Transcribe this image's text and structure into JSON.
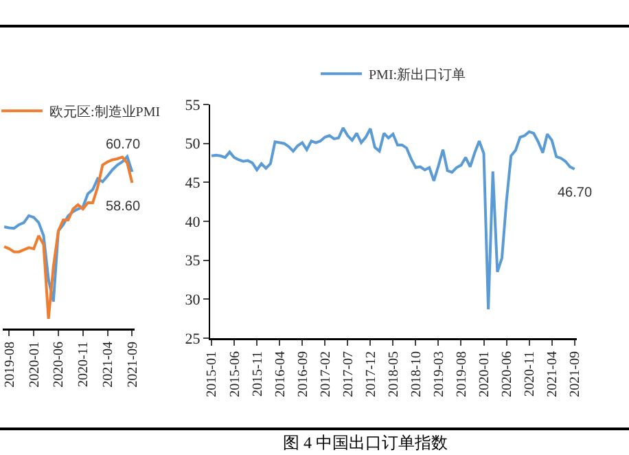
{
  "chart_data": [
    {
      "type": "line",
      "legend": "top right",
      "categories": [
        null,
        "2019-08",
        null,
        null,
        null,
        null,
        "2020-01",
        null,
        null,
        null,
        null,
        "2020-06",
        null,
        null,
        null,
        null,
        "2020-11",
        null,
        null,
        null,
        null,
        "2021-04",
        null,
        null,
        null,
        null,
        "2021-09"
      ],
      "series": [
        {
          "color": "#5b9bd5",
          "values": [
            50.2,
            50.0,
            49.9,
            50.6,
            51.0,
            52.3,
            52.0,
            51.0,
            48.5,
            40.1,
            35.9,
            49.4,
            50.6,
            52.3,
            53.1,
            53.6,
            54.0,
            56.5,
            57.3,
            59.4,
            58.8,
            59.9,
            61.1,
            62.0,
            62.6,
            63.6,
            60.7
          ],
          "value_labels": [
            null,
            null,
            null,
            null,
            null,
            null,
            null,
            null,
            null,
            null,
            null,
            null,
            null,
            null,
            null,
            null,
            null,
            null,
            null,
            null,
            null,
            null,
            null,
            null,
            null,
            null,
            "60.70"
          ]
        },
        {
          "name": "欧元区:制造业PMI",
          "color": "#ed7d31",
          "values": [
            46.4,
            46.0,
            45.4,
            45.4,
            45.8,
            46.2,
            46.0,
            48.5,
            46.8,
            32.6,
            42.6,
            49.4,
            51.5,
            51.5,
            53.6,
            54.4,
            53.6,
            54.8,
            54.8,
            57.8,
            62.0,
            62.6,
            63.0,
            63.2,
            63.5,
            62.4,
            58.6
          ],
          "value_labels": [
            null,
            null,
            null,
            null,
            null,
            null,
            null,
            null,
            null,
            null,
            null,
            null,
            null,
            null,
            null,
            null,
            null,
            null,
            null,
            null,
            null,
            null,
            null,
            null,
            null,
            null,
            "58.60"
          ]
        }
      ]
    },
    {
      "type": "line",
      "title": "图 4  中国出口订单指数",
      "legend": "top",
      "categories": [
        "2015-01",
        null,
        null,
        null,
        null,
        "2015-06",
        null,
        null,
        null,
        null,
        "2015-11",
        null,
        null,
        null,
        null,
        "2016-04",
        null,
        null,
        null,
        null,
        "2016-09",
        null,
        null,
        null,
        null,
        "2017-02",
        null,
        null,
        null,
        null,
        "2017-07",
        null,
        null,
        null,
        null,
        "2017-12",
        null,
        null,
        null,
        null,
        "2018-05",
        null,
        null,
        null,
        null,
        "2018-10",
        null,
        null,
        null,
        null,
        "2019-03",
        null,
        null,
        null,
        null,
        "2019-08",
        null,
        null,
        null,
        null,
        "2020-01",
        null,
        null,
        null,
        null,
        "2020-06",
        null,
        null,
        null,
        null,
        "2020-11",
        null,
        null,
        null,
        null,
        "2021-04",
        null,
        null,
        null,
        null,
        "2021-09"
      ],
      "ylim": [
        25,
        55
      ],
      "yticks": [
        25,
        30,
        35,
        40,
        45,
        50,
        55
      ],
      "series": [
        {
          "name": "PMI:新出口订单",
          "color": "#5b9bd5",
          "values": [
            48.4,
            48.5,
            48.4,
            48.2,
            48.9,
            48.2,
            47.9,
            47.7,
            47.8,
            47.5,
            46.6,
            47.4,
            46.8,
            47.4,
            50.2,
            50.1,
            50.0,
            49.6,
            49.0,
            49.7,
            50.1,
            49.2,
            50.3,
            50.1,
            50.3,
            50.8,
            51.0,
            50.6,
            50.7,
            52.0,
            51.0,
            50.4,
            51.3,
            50.1,
            50.8,
            51.9,
            49.5,
            49.0,
            51.3,
            50.7,
            51.2,
            49.8,
            49.8,
            49.4,
            48.0,
            46.9,
            47.0,
            46.6,
            46.9,
            45.2,
            47.1,
            49.2,
            46.5,
            46.3,
            46.9,
            47.2,
            48.2,
            47.0,
            48.8,
            50.3,
            48.7,
            28.7,
            46.4,
            33.5,
            35.3,
            42.6,
            48.4,
            49.1,
            50.8,
            51.0,
            51.5,
            51.3,
            50.2,
            48.8,
            51.2,
            50.4,
            48.3,
            48.1,
            47.7,
            47.0,
            46.7
          ],
          "value_labels": [
            null,
            null,
            null,
            null,
            null,
            null,
            null,
            null,
            null,
            null,
            null,
            null,
            null,
            null,
            null,
            null,
            null,
            null,
            null,
            null,
            null,
            null,
            null,
            null,
            null,
            null,
            null,
            null,
            null,
            null,
            null,
            null,
            null,
            null,
            null,
            null,
            null,
            null,
            null,
            null,
            null,
            null,
            null,
            null,
            null,
            null,
            null,
            null,
            null,
            null,
            null,
            null,
            null,
            null,
            null,
            null,
            null,
            null,
            null,
            null,
            null,
            null,
            null,
            null,
            null,
            null,
            null,
            null,
            null,
            null,
            null,
            null,
            null,
            null,
            null,
            null,
            null,
            null,
            null,
            null,
            "46.70"
          ]
        }
      ]
    }
  ]
}
